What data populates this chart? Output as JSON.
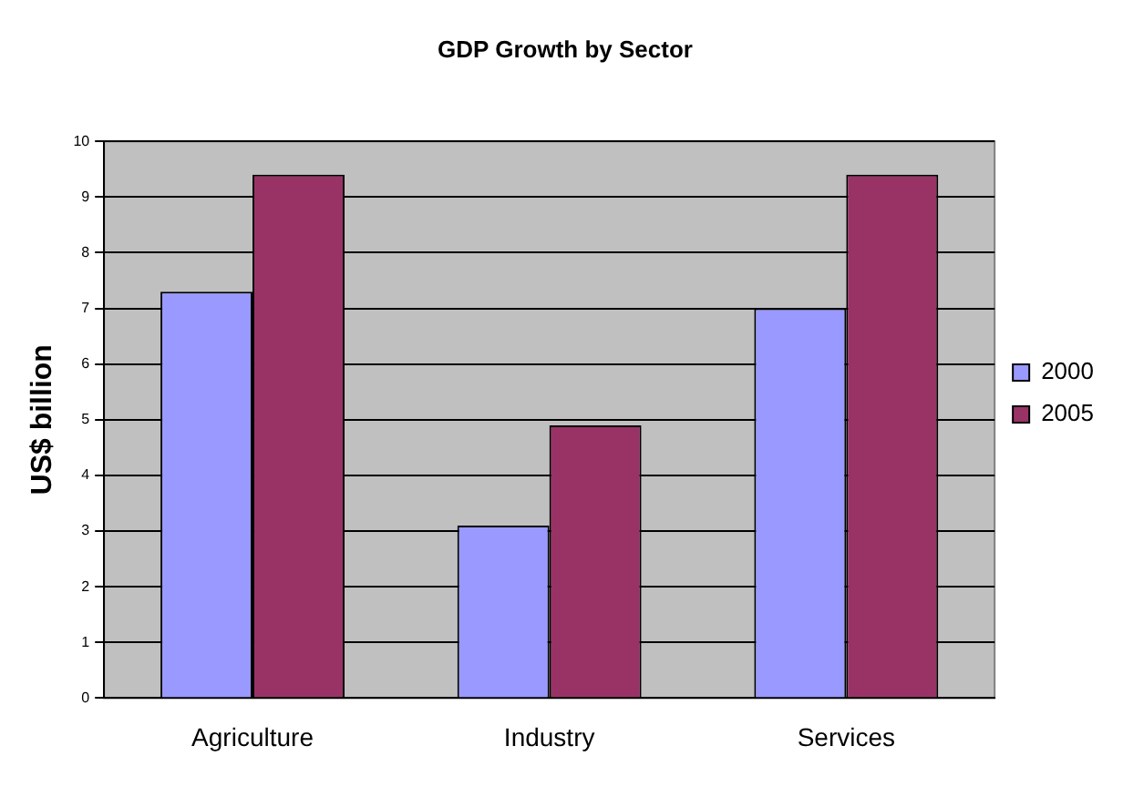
{
  "chart_data": {
    "type": "bar",
    "title": "GDP Growth by Sector",
    "ylabel": "US$ billion",
    "categories": [
      "Agriculture",
      "Industry",
      "Services"
    ],
    "series": [
      {
        "name": "2000",
        "color": "#9999ff",
        "values": [
          7.3,
          3.1,
          7.0
        ]
      },
      {
        "name": "2005",
        "color": "#993366",
        "values": [
          9.4,
          4.9,
          9.4
        ]
      }
    ],
    "ylim": [
      0,
      10
    ],
    "yticks": [
      0,
      1,
      2,
      3,
      4,
      5,
      6,
      7,
      8,
      9,
      10
    ],
    "grid": "y",
    "legend": "right"
  }
}
